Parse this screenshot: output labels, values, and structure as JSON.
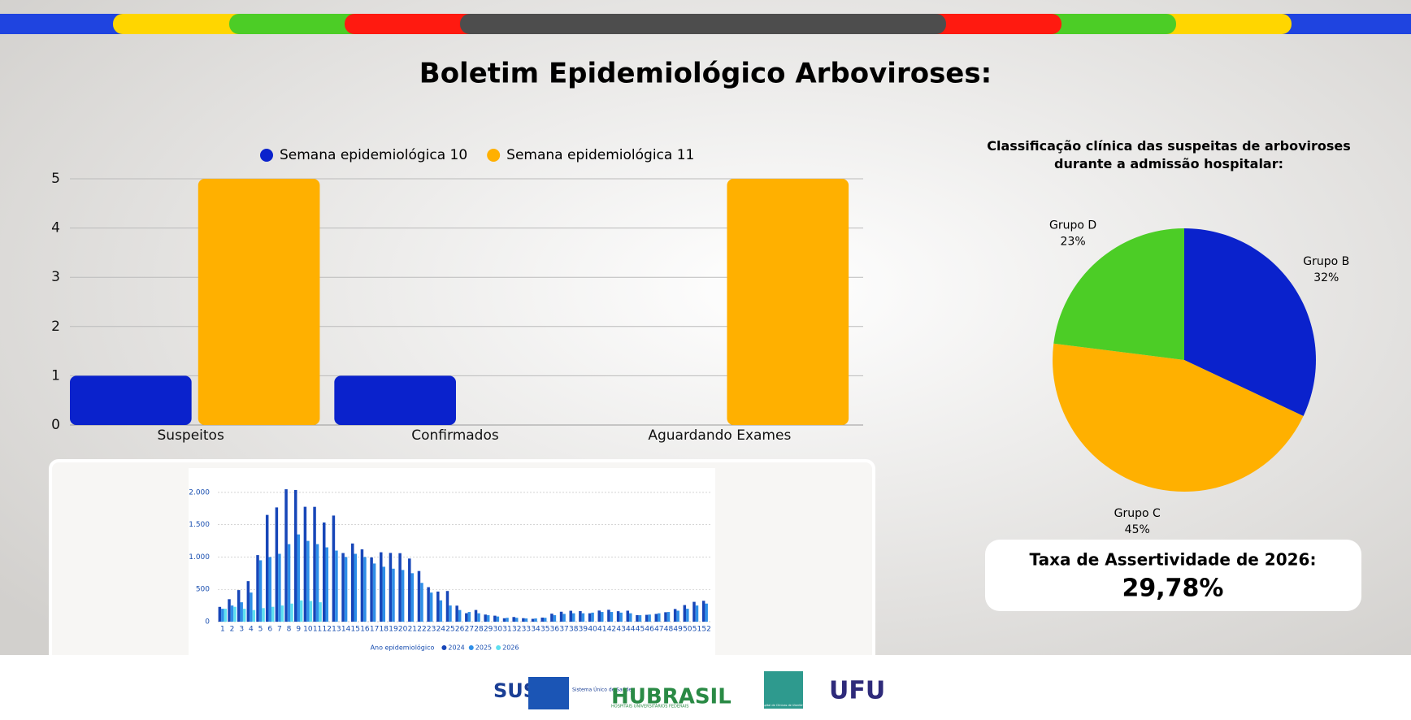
{
  "header": {
    "title": "Boletim Epidemiológico Arboviroses:"
  },
  "chart_data": [
    {
      "type": "bar",
      "categories": [
        "Suspeitos",
        "Confirmados",
        "Aguardando Exames"
      ],
      "series": [
        {
          "name": "Semana epidemiológica 10",
          "color": "#0a22cc",
          "values": [
            1,
            1,
            0
          ]
        },
        {
          "name": "Semana epidemiológica 11",
          "color": "#ffb000",
          "values": [
            5,
            0,
            5
          ]
        }
      ],
      "ylim": [
        0,
        5
      ],
      "yticks": [
        0,
        1,
        2,
        3,
        4,
        5
      ],
      "grid": true,
      "legend": "top"
    },
    {
      "type": "pie",
      "title": "Classificação clínica das suspeitas de arboviroses durante a admissão hospitalar:",
      "categories": [
        "Grupo B",
        "Grupo C",
        "Grupo D"
      ],
      "values": [
        32,
        45,
        23
      ],
      "value_labels": [
        "32%",
        "45%",
        "23%"
      ],
      "colors": [
        "#0a22cc",
        "#ffb000",
        "#4ccd26"
      ]
    },
    {
      "type": "bar",
      "xlabel": "Ano epidemiológico",
      "categories": [
        "1",
        "2",
        "3",
        "4",
        "5",
        "6",
        "7",
        "8",
        "9",
        "10",
        "11",
        "12",
        "13",
        "14",
        "15",
        "16",
        "17",
        "18",
        "19",
        "20",
        "21",
        "22",
        "23",
        "24",
        "25",
        "26",
        "27",
        "28",
        "29",
        "30",
        "31",
        "32",
        "33",
        "34",
        "35",
        "36",
        "37",
        "38",
        "39",
        "40",
        "41",
        "42",
        "43",
        "44",
        "45",
        "46",
        "47",
        "48",
        "49",
        "50",
        "51",
        "52"
      ],
      "series": [
        {
          "name": "2024",
          "color": "#1746b8",
          "values": [
            229,
            348,
            489,
            627,
            1030,
            1652,
            1768,
            2049,
            2038,
            1778,
            1777,
            1535,
            1642,
            1062,
            1210,
            1119,
            994,
            1074,
            1064,
            1060,
            977,
            784,
            534,
            466,
            475,
            248,
            131,
            181,
            110,
            93,
            53,
            72,
            54,
            44,
            63,
            124,
            154,
            169,
            163,
            130,
            172,
            184,
            162,
            170,
            101,
            106,
            120,
            146,
            196,
            257,
            307,
            323
          ]
        },
        {
          "name": "2025",
          "color": "#2f8fe8",
          "values": [
            200,
            250,
            300,
            450,
            950,
            1000,
            1050,
            1200,
            1350,
            1250,
            1200,
            1150,
            1100,
            1000,
            1050,
            1000,
            900,
            850,
            820,
            800,
            750,
            600,
            450,
            330,
            250,
            180,
            150,
            130,
            100,
            80,
            60,
            60,
            50,
            50,
            60,
            100,
            120,
            130,
            130,
            140,
            150,
            150,
            140,
            130,
            100,
            110,
            130,
            150,
            170,
            200,
            250,
            280
          ]
        },
        {
          "name": "2026",
          "color": "#5ee0f0",
          "values": [
            200,
            230,
            200,
            180,
            210,
            230,
            250,
            280,
            329,
            320,
            300,
            null,
            null,
            null,
            null,
            null,
            null,
            null,
            null,
            null,
            null,
            null,
            null,
            null,
            null,
            null,
            null,
            null,
            null,
            null,
            null,
            null,
            null,
            null,
            null,
            null,
            null,
            null,
            null,
            null,
            null,
            null,
            null,
            null,
            null,
            null,
            null,
            null,
            null,
            null,
            null,
            null
          ]
        }
      ],
      "ylim": [
        0,
        2100
      ],
      "yticks": [
        0,
        500,
        {
          "value": 1000,
          "label": "1.000"
        },
        {
          "value": 1500,
          "label": "1.500"
        },
        {
          "value": 2000,
          "label": "2.000"
        }
      ],
      "grid": true,
      "legend": "bottom"
    }
  ],
  "kpi": {
    "label": "Taxa de Assertividade de 2026:",
    "value": "29,78%"
  },
  "footer": {
    "logos": [
      "SUS",
      "Sistema Único de Saúde",
      "HUBRASIL",
      "HOSPITAIS UNIVERSITÁRIOS FEDERAIS",
      "Hospital de Clínicas de Uberlândia",
      "UFU"
    ]
  }
}
